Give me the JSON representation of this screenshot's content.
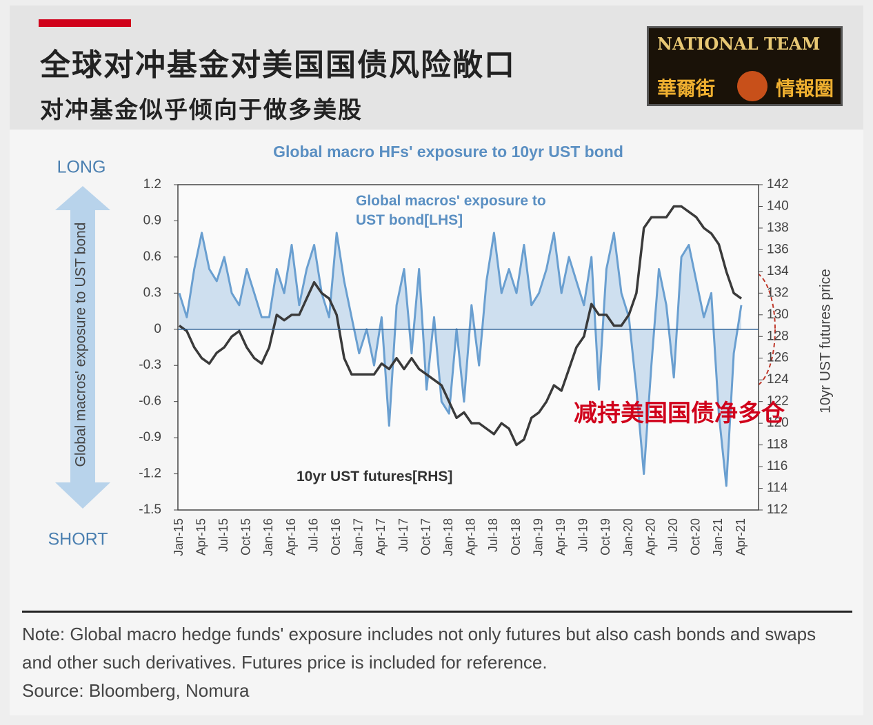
{
  "header": {
    "title": "全球对冲基金对美国国债风险敞口",
    "subtitle": "对冲基金似乎倾向于做多美股",
    "logo": [
      "NATIONAL TEAM",
      "華爾街",
      "情報圈"
    ]
  },
  "chart_data": {
    "type": "line",
    "title": "Global macro HFs' exposure to 10yr UST bond",
    "y_label": "Global macros' exposure to UST bond",
    "y2_label": "10yr UST futures price",
    "annotations": [
      "LONG",
      "SHORT",
      "减持美国国债净多仓"
    ],
    "categories": [
      "Jan-15",
      null,
      null,
      "Apr-15",
      null,
      null,
      "Jul-15",
      null,
      null,
      "Oct-15",
      null,
      null,
      "Jan-16",
      null,
      null,
      "Apr-16",
      null,
      null,
      "Jul-16",
      null,
      null,
      "Oct-16",
      null,
      null,
      "Jan-17",
      null,
      null,
      "Apr-17",
      null,
      null,
      "Jul-17",
      null,
      null,
      "Oct-17",
      null,
      null,
      "Jan-18",
      null,
      null,
      "Apr-18",
      null,
      null,
      "Jul-18",
      null,
      null,
      "Oct-18",
      null,
      null,
      "Jan-19",
      null,
      null,
      "Apr-19",
      null,
      null,
      "Jul-19",
      null,
      null,
      "Oct-19",
      null,
      null,
      "Jan-20",
      null,
      null,
      "Apr-20",
      null,
      null,
      "Jul-20",
      null,
      null,
      "Oct-20",
      null,
      null,
      "Jan-21",
      null,
      null,
      "Apr-21"
    ],
    "series": [
      {
        "name": "Global macros' exposure to UST bond[LHS]",
        "color": "#6a9fd0",
        "fill": "#c5d9ec",
        "axis": "y",
        "values": [
          0.3,
          0.1,
          0.5,
          0.8,
          0.5,
          0.4,
          0.6,
          0.3,
          0.2,
          0.5,
          0.3,
          0.1,
          0.1,
          0.5,
          0.3,
          0.7,
          0.2,
          0.5,
          0.7,
          0.3,
          0.1,
          0.8,
          0.4,
          0.1,
          -0.2,
          0.0,
          -0.3,
          0.1,
          -0.8,
          0.2,
          0.5,
          -0.2,
          0.5,
          -0.5,
          0.1,
          -0.6,
          -0.7,
          0.0,
          -0.6,
          0.2,
          -0.3,
          0.4,
          0.8,
          0.3,
          0.5,
          0.3,
          0.7,
          0.2,
          0.3,
          0.5,
          0.8,
          0.3,
          0.6,
          0.4,
          0.2,
          0.6,
          -0.5,
          0.5,
          0.8,
          0.3,
          0.1,
          -0.5,
          -1.2,
          -0.3,
          0.5,
          0.2,
          -0.4,
          0.6,
          0.7,
          0.4,
          0.1,
          0.3,
          -0.7,
          -1.3,
          -0.2,
          0.2
        ]
      },
      {
        "name": "10yr UST futures[RHS]",
        "color": "#3a3a3a",
        "axis": "y2",
        "values": [
          129,
          128.5,
          127,
          126,
          125.5,
          126.5,
          127,
          128,
          128.5,
          127,
          126,
          125.5,
          127,
          130,
          129.5,
          130,
          130,
          131.5,
          133,
          132,
          131.5,
          130,
          126,
          124.5,
          124.5,
          124.5,
          124.5,
          125.5,
          125,
          126,
          125,
          126,
          125,
          124.5,
          124,
          123.5,
          122,
          120.5,
          121,
          120,
          120,
          119.5,
          119,
          120,
          119.5,
          118,
          118.5,
          120.5,
          121,
          122,
          123.5,
          123,
          125,
          127,
          128,
          131,
          130,
          130,
          129,
          129,
          130,
          132,
          138,
          139,
          139,
          139,
          140,
          140,
          139.5,
          139,
          138,
          137.5,
          136.5,
          134,
          132,
          131.5
        ]
      }
    ],
    "ylim": [
      -1.5,
      1.2
    ],
    "yticks": [
      1.2,
      0.9,
      0.6,
      0.3,
      0,
      -0.3,
      -0.6,
      -0.9,
      -1.2,
      -1.5
    ],
    "y2lim": [
      112,
      142
    ],
    "y2ticks": [
      142,
      140,
      138,
      136,
      134,
      132,
      130,
      128,
      126,
      124,
      122,
      120,
      118,
      116,
      114,
      112
    ],
    "zero_line": true
  },
  "footer": {
    "note": "Note: Global macro hedge funds' exposure includes not only futures but also cash bonds and swaps and other such derivatives. Futures price is included for reference.",
    "source": "Source: Bloomberg, Nomura"
  }
}
